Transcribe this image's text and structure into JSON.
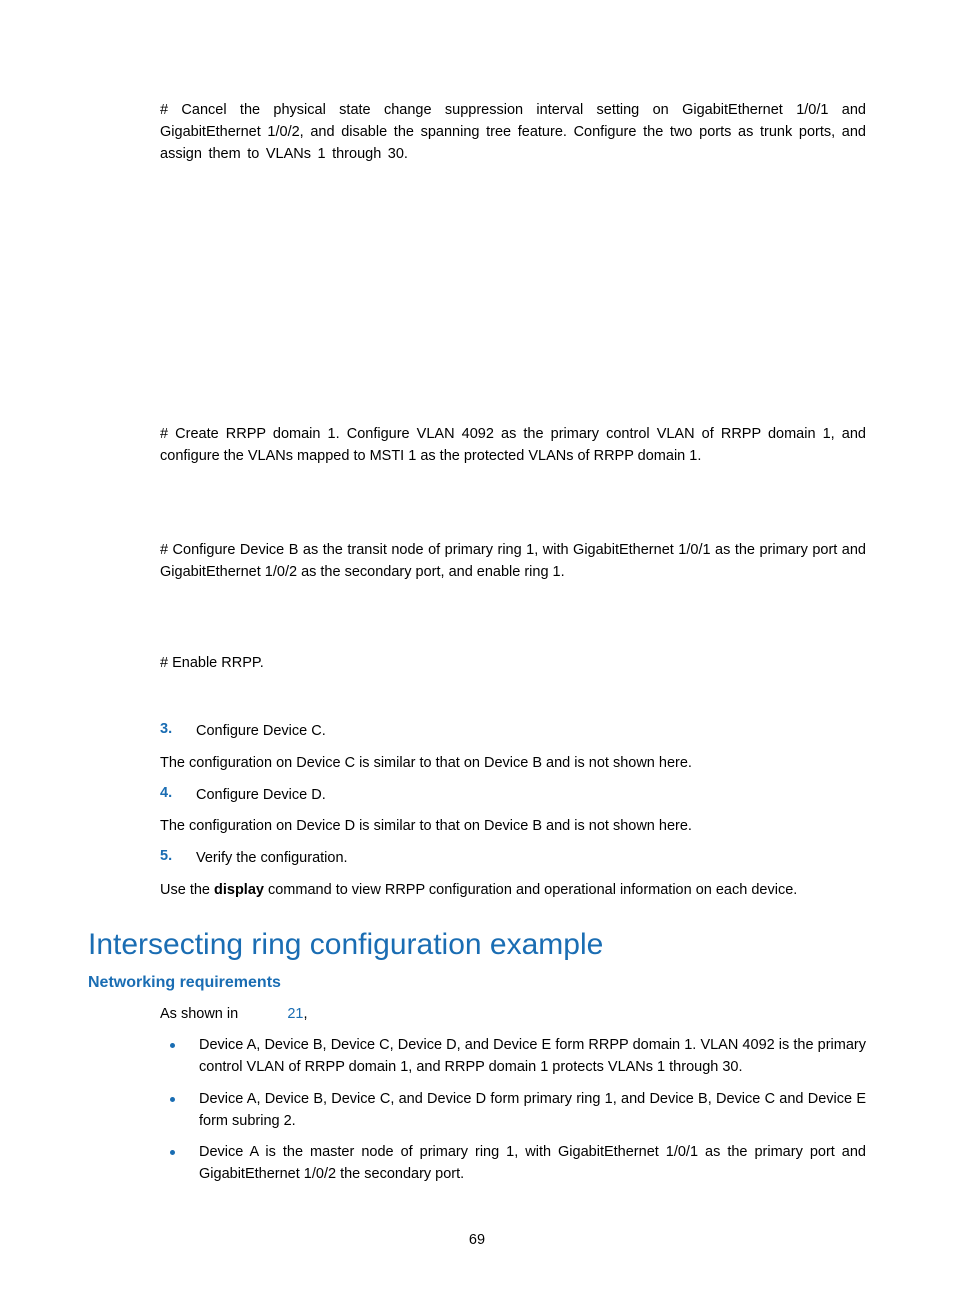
{
  "p1": "# Cancel the physical state change suppression interval setting on GigabitEthernet 1/0/1 and GigabitEthernet 1/0/2, and disable the spanning tree feature. Configure the two ports as trunk ports, and assign them to VLANs 1 through 30.",
  "p2": "# Create RRPP domain 1. Configure VLAN 4092 as the primary control VLAN of RRPP domain 1, and configure the VLANs mapped to MSTI 1 as the protected VLANs of RRPP domain 1.",
  "p3": "# Configure Device B as the transit node of primary ring 1, with GigabitEthernet 1/0/1 as the primary port and GigabitEthernet 1/0/2 as the secondary port, and enable ring 1.",
  "p4": "# Enable RRPP.",
  "step3_num": "3.",
  "step3_text": "Configure Device C.",
  "p5": "The configuration on Device C is similar to that on Device B and is not shown here.",
  "step4_num": "4.",
  "step4_text": "Configure Device D.",
  "p6": "The configuration on Device D is similar to that on Device B and is not shown here.",
  "step5_num": "5.",
  "step5_text": "Verify the configuration.",
  "p7a": "Use the ",
  "p7b": "display",
  "p7c": " command to view RRPP configuration and operational information on each device.",
  "h2": "Intersecting ring configuration example",
  "h3": "Networking requirements",
  "asshown_a": "As shown in ",
  "asshown_link": "21",
  "asshown_b": ",",
  "b1": "Device A, Device B, Device C, Device D, and Device E form RRPP domain 1. VLAN 4092 is the primary control VLAN of RRPP domain 1, and RRPP domain 1 protects VLANs 1 through 30.",
  "b2": "Device A, Device B, Device C, and Device D form primary ring 1, and Device B, Device C and Device E form subring 2.",
  "b3": "Device A is the master node of primary ring 1, with GigabitEthernet 1/0/1 as the primary port and GigabitEthernet 1/0/2 the secondary port.",
  "page_num": "69"
}
